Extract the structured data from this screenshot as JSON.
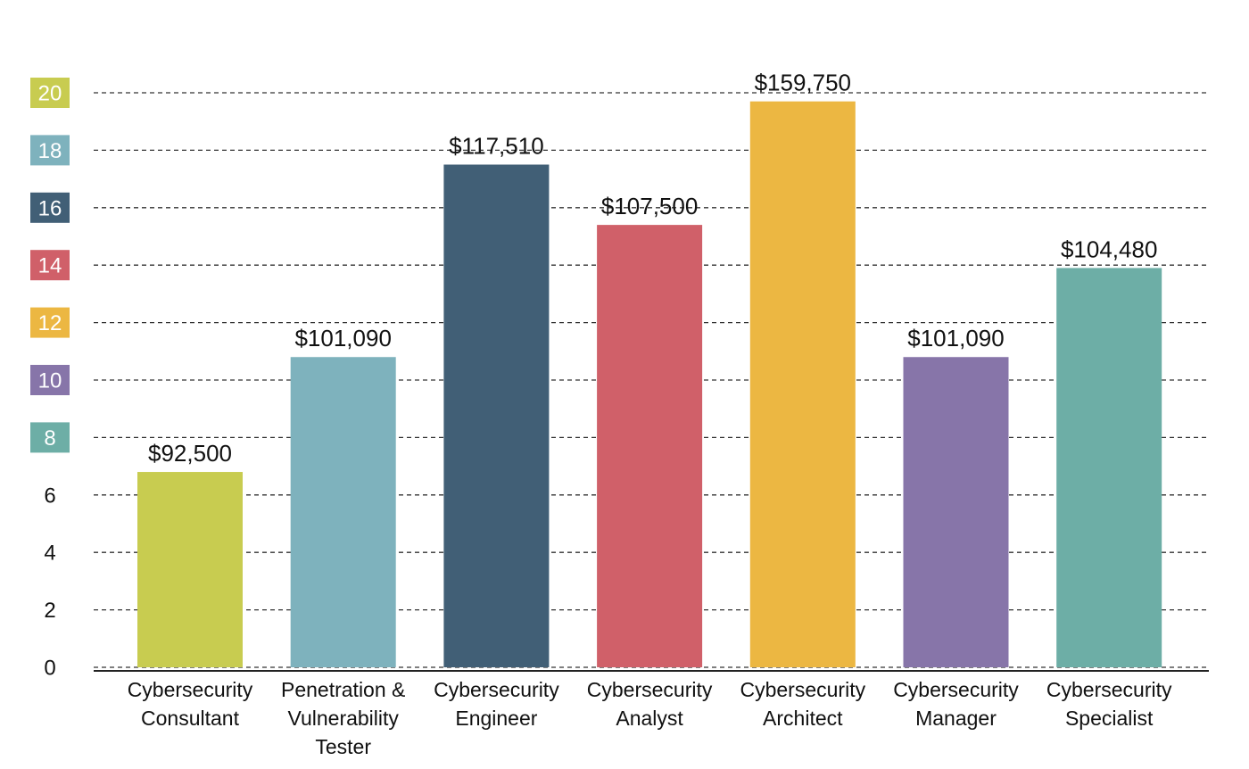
{
  "chart_data": {
    "type": "bar",
    "categories": [
      "Cybersecurity Consultant",
      "Penetration & Vulnerability Tester",
      "Cybersecurity Engineer",
      "Cybersecurity Analyst",
      "Cybersecurity Architect",
      "Cybersecurity Manager",
      "Cybersecurity Specialist"
    ],
    "category_lines": [
      [
        "Cybersecurity",
        "Consultant"
      ],
      [
        "Penetration &",
        "Vulnerability",
        "Tester"
      ],
      [
        "Cybersecurity",
        "Engineer"
      ],
      [
        "Cybersecurity",
        "Analyst"
      ],
      [
        "Cybersecurity",
        "Architect"
      ],
      [
        "Cybersecurity",
        "Manager"
      ],
      [
        "Cybersecurity",
        "Specialist"
      ]
    ],
    "values": [
      6.8,
      10.8,
      17.5,
      15.4,
      19.7,
      10.8,
      13.9
    ],
    "data_labels": [
      "$92,500",
      "$101,090",
      "$117,510",
      "$107,500",
      "$159,750",
      "$101,090",
      "$104,480"
    ],
    "bar_colors": [
      "#c8cc50",
      "#7eb2bd",
      "#415f76",
      "#d06069",
      "#ecb742",
      "#8775a9",
      "#6daea6"
    ],
    "title": "",
    "xlabel": "",
    "ylabel": "",
    "ylim": [
      0,
      20
    ],
    "y_ticks": [
      {
        "value": 0,
        "label": "0",
        "badge_color": ""
      },
      {
        "value": 2,
        "label": "2",
        "badge_color": ""
      },
      {
        "value": 4,
        "label": "4",
        "badge_color": ""
      },
      {
        "value": 6,
        "label": "6",
        "badge_color": ""
      },
      {
        "value": 8,
        "label": "8",
        "badge_color": "#6daea6"
      },
      {
        "value": 10,
        "label": "10",
        "badge_color": "#8775a9"
      },
      {
        "value": 12,
        "label": "12",
        "badge_color": "#ecb742"
      },
      {
        "value": 14,
        "label": "14",
        "badge_color": "#d06069"
      },
      {
        "value": 16,
        "label": "16",
        "badge_color": "#415f76"
      },
      {
        "value": 18,
        "label": "18",
        "badge_color": "#7eb2bd"
      },
      {
        "value": 20,
        "label": "20",
        "badge_color": "#c8cc50"
      }
    ],
    "grid": true,
    "grid_style": "dashed",
    "legend": "none"
  }
}
